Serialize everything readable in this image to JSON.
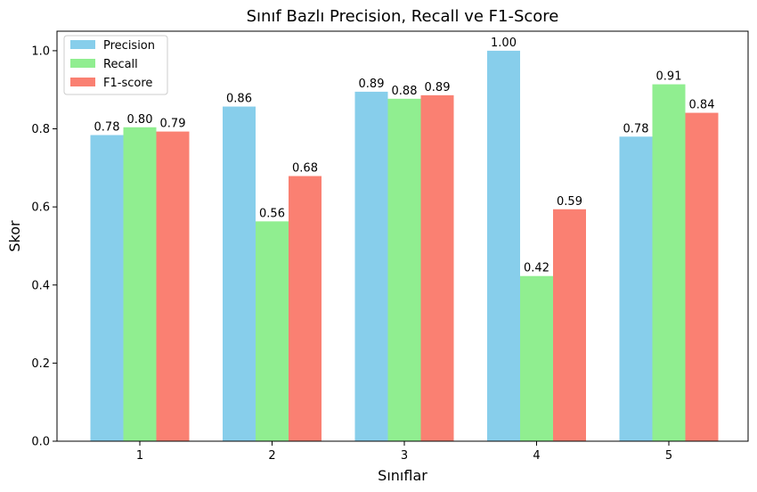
{
  "chart_data": {
    "type": "bar",
    "title": "Sınıf Bazlı Precision, Recall ve F1-Score",
    "xlabel": "Sınıflar",
    "ylabel": "Skor",
    "categories": [
      "1",
      "2",
      "3",
      "4",
      "5"
    ],
    "ylim": [
      0,
      1.05
    ],
    "yticks": [
      "0.0",
      "0.2",
      "0.4",
      "0.6",
      "0.8",
      "1.0"
    ],
    "series": [
      {
        "name": "Precision",
        "color": "#87CEEB",
        "values": [
          0.784,
          0.857,
          0.895,
          1.0,
          0.78
        ],
        "labels": [
          "0.78",
          "0.86",
          "0.89",
          "1.00",
          "0.78"
        ]
      },
      {
        "name": "Recall",
        "color": "#90EE90",
        "values": [
          0.804,
          0.563,
          0.877,
          0.423,
          0.914
        ],
        "labels": [
          "0.80",
          "0.56",
          "0.88",
          "0.42",
          "0.91"
        ]
      },
      {
        "name": "F1-score",
        "color": "#FA8072",
        "values": [
          0.793,
          0.679,
          0.886,
          0.594,
          0.841
        ],
        "labels": [
          "0.79",
          "0.68",
          "0.89",
          "0.59",
          "0.84"
        ]
      }
    ],
    "legend_position": "top-left",
    "grid": false
  }
}
